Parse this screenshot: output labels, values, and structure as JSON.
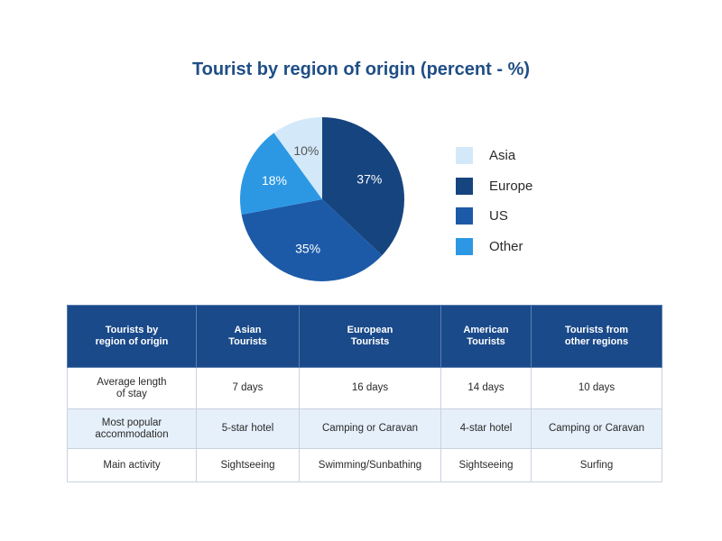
{
  "chart_data": [
    {
      "type": "pie",
      "title": "Tourist by region of origin (percent - %)",
      "slices": [
        {
          "label": "Asia",
          "value": 10,
          "display": "10%",
          "color": "#d3e9f9"
        },
        {
          "label": "Europe",
          "value": 37,
          "display": "37%",
          "color": "#16447f"
        },
        {
          "label": "US",
          "value": 35,
          "display": "35%",
          "color": "#1c5aa8"
        },
        {
          "label": "Other",
          "value": 18,
          "display": "18%",
          "color": "#2c98e3"
        }
      ],
      "legend_placement": "right"
    },
    {
      "type": "table",
      "columns": [
        "Tourists by\nregion of origin",
        "Asian\nTourists",
        "European\nTourists",
        "American\nTourists",
        "Tourists from\nother regions"
      ],
      "rows": [
        [
          "Average length\nof stay",
          "7 days",
          "16 days",
          "14 days",
          "10 days"
        ],
        [
          "Most popular\naccommodation",
          "5-star hotel",
          "Camping or Caravan",
          "4-star hotel",
          "Camping or Caravan"
        ],
        [
          "Main activity",
          "Sightseeing",
          "Swimming/Sunbathing",
          "Sightseeing",
          "Surfing"
        ]
      ],
      "header_color": "#1a4a8a",
      "stripe_color": "#e6f0fa"
    }
  ]
}
